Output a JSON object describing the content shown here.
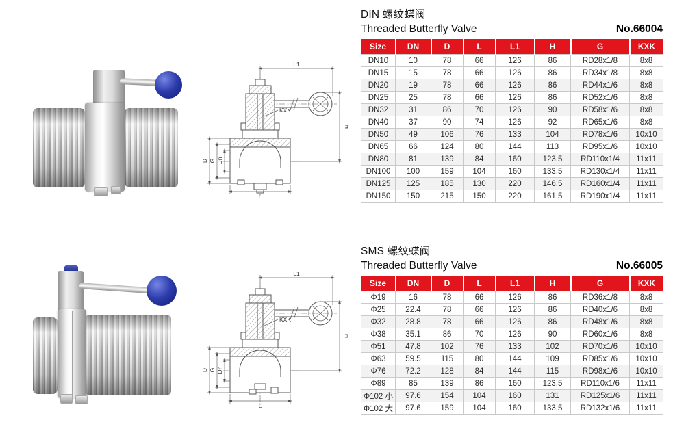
{
  "colors": {
    "header_red": "#e2151c",
    "knob_blue": "#2c3cab",
    "row_alt": "#f2f2f2"
  },
  "sections": [
    {
      "id": "din",
      "title_cn": "DIN 螺纹蝶阀",
      "title_en": "Threaded Butterfly Valve",
      "model_no": "No.66004",
      "drawing": {
        "l1": "L1",
        "kxk": "KXK",
        "h": "H",
        "d": "D",
        "g": "G",
        "dn": "Dn",
        "l": "L"
      },
      "table": {
        "headers": [
          "Size",
          "DN",
          "D",
          "L",
          "L1",
          "H",
          "G",
          "KXK"
        ],
        "rows": [
          [
            "DN10",
            "10",
            "78",
            "66",
            "126",
            "86",
            "RD28x1/8",
            "8x8"
          ],
          [
            "DN15",
            "15",
            "78",
            "66",
            "126",
            "86",
            "RD34x1/8",
            "8x8"
          ],
          [
            "DN20",
            "19",
            "78",
            "66",
            "126",
            "86",
            "RD44x1/6",
            "8x8"
          ],
          [
            "DN25",
            "25",
            "78",
            "66",
            "126",
            "86",
            "RD52x1/6",
            "8x8"
          ],
          [
            "DN32",
            "31",
            "86",
            "70",
            "126",
            "90",
            "RD58x1/6",
            "8x8"
          ],
          [
            "DN40",
            "37",
            "90",
            "74",
            "126",
            "92",
            "RD65x1/6",
            "8x8"
          ],
          [
            "DN50",
            "49",
            "106",
            "76",
            "133",
            "104",
            "RD78x1/6",
            "10x10"
          ],
          [
            "DN65",
            "66",
            "124",
            "80",
            "144",
            "113",
            "RD95x1/6",
            "10x10"
          ],
          [
            "DN80",
            "81",
            "139",
            "84",
            "160",
            "123.5",
            "RD110x1/4",
            "11x11"
          ],
          [
            "DN100",
            "100",
            "159",
            "104",
            "160",
            "133.5",
            "RD130x1/4",
            "11x11"
          ],
          [
            "DN125",
            "125",
            "185",
            "130",
            "220",
            "146.5",
            "RD160x1/4",
            "11x11"
          ],
          [
            "DN150",
            "150",
            "215",
            "150",
            "220",
            "161.5",
            "RD190x1/4",
            "11x11"
          ]
        ]
      }
    },
    {
      "id": "sms",
      "title_cn": "SMS 螺纹蝶阀",
      "title_en": "Threaded Butterfly Valve",
      "model_no": "No.66005",
      "drawing": {
        "l1": "L1",
        "kxk": "KXK",
        "h": "H",
        "d": "D",
        "g": "G",
        "dn": "Dn",
        "l": "L"
      },
      "table": {
        "headers": [
          "Size",
          "DN",
          "D",
          "L",
          "L1",
          "H",
          "G",
          "KXK"
        ],
        "rows": [
          [
            "Φ19",
            "16",
            "78",
            "66",
            "126",
            "86",
            "RD36x1/8",
            "8x8"
          ],
          [
            "Φ25",
            "22.4",
            "78",
            "66",
            "126",
            "86",
            "RD40x1/6",
            "8x8"
          ],
          [
            "Φ32",
            "28.8",
            "78",
            "66",
            "126",
            "86",
            "RD48x1/6",
            "8x8"
          ],
          [
            "Φ38",
            "35.1",
            "86",
            "70",
            "126",
            "90",
            "RD60x1/6",
            "8x8"
          ],
          [
            "Φ51",
            "47.8",
            "102",
            "76",
            "133",
            "102",
            "RD70x1/6",
            "10x10"
          ],
          [
            "Φ63",
            "59.5",
            "115",
            "80",
            "144",
            "109",
            "RD85x1/6",
            "10x10"
          ],
          [
            "Φ76",
            "72.2",
            "128",
            "84",
            "144",
            "115",
            "RD98x1/6",
            "10x10"
          ],
          [
            "Φ89",
            "85",
            "139",
            "86",
            "160",
            "123.5",
            "RD110x1/6",
            "11x11"
          ],
          [
            "Φ102 小",
            "97.6",
            "154",
            "104",
            "160",
            "131",
            "RD125x1/6",
            "11x11"
          ],
          [
            "Φ102 大",
            "97.6",
            "159",
            "104",
            "160",
            "133.5",
            "RD132x1/6",
            "11x11"
          ]
        ]
      }
    }
  ]
}
